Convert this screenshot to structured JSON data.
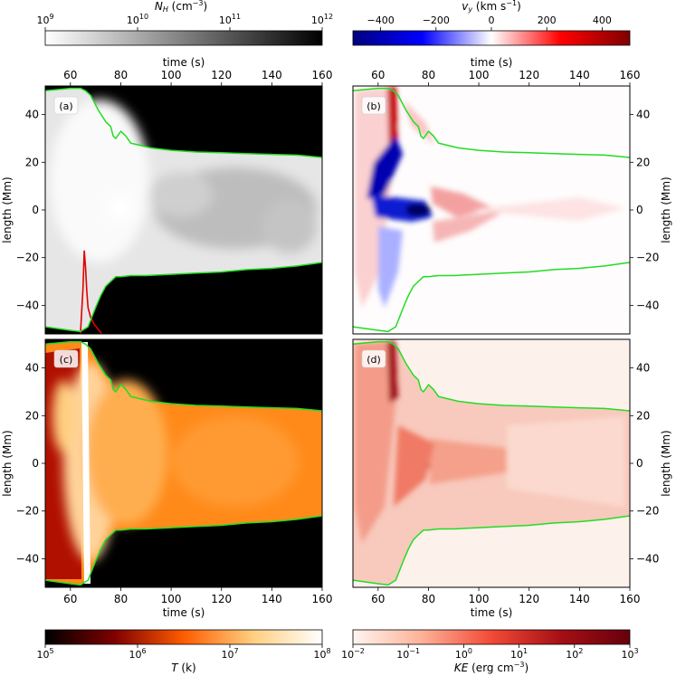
{
  "panels": [
    {
      "id": "a",
      "label": "(a)",
      "x_tick_side": "top",
      "y_tick_side": "left",
      "xlabel": "time (s)",
      "ylabel": "length (Mm)",
      "show_red_profile": true
    },
    {
      "id": "b",
      "label": "(b)",
      "x_tick_side": "top",
      "y_tick_side": "right",
      "xlabel": "time (s)",
      "ylabel": "length (Mm)",
      "show_red_profile": false
    },
    {
      "id": "c",
      "label": "(c)",
      "x_tick_side": "bottom",
      "y_tick_side": "left",
      "xlabel": "time (s)",
      "ylabel": "length (Mm)",
      "show_red_profile": false
    },
    {
      "id": "d",
      "label": "(d)",
      "x_tick_side": "bottom",
      "y_tick_side": "right",
      "xlabel": "time (s)",
      "ylabel": "length (Mm)",
      "show_red_profile": false
    }
  ],
  "colorbars": [
    {
      "id": "nh",
      "label": "N_H (cm^-3)",
      "scale": "log",
      "ticks": [
        "10^9",
        "10^10",
        "10^11",
        "10^12"
      ],
      "colors": [
        "#ffffff",
        "#000000"
      ]
    },
    {
      "id": "vy",
      "label": "v_y (km s^-1)",
      "scale": "linear",
      "ticks": [
        "−400",
        "−200",
        "0",
        "200",
        "400"
      ],
      "tick_values": [
        -400,
        -200,
        0,
        200,
        400
      ],
      "range": [
        -500,
        500
      ],
      "colors": [
        "#00007f",
        "#0000ff",
        "#ffffff",
        "#ff0000",
        "#7f0000"
      ]
    },
    {
      "id": "t",
      "label": "T (k)",
      "scale": "log",
      "ticks": [
        "10^5",
        "10^6",
        "10^7",
        "10^8"
      ],
      "colors": [
        "#000000",
        "#7f0000",
        "#ff5c00",
        "#ffcf80",
        "#ffffff"
      ]
    },
    {
      "id": "ke",
      "label": "KE (erg cm^-3)",
      "scale": "log",
      "ticks": [
        "10^-2",
        "10^-1",
        "10^0",
        "10^1",
        "10^2",
        "10^3"
      ],
      "colors": [
        "#fff5f0",
        "#fcb197",
        "#f34a36",
        "#a50f15",
        "#67000d"
      ]
    }
  ],
  "chart_data": {
    "type": "heatmap",
    "xlabel": "time (s)",
    "ylabel": "length (Mm)",
    "xlim": [
      50,
      160
    ],
    "ylim": [
      -52,
      52
    ],
    "xticks": [
      60,
      80,
      100,
      120,
      140,
      160
    ],
    "yticks": [
      -40,
      -20,
      0,
      20,
      40
    ],
    "boundary_upper": {
      "x": [
        50,
        60,
        64,
        66,
        68,
        71,
        74,
        76,
        77,
        78,
        80,
        82,
        84,
        86,
        88,
        92,
        100,
        110,
        120,
        130,
        140,
        150,
        160
      ],
      "y": [
        50,
        51,
        51,
        50,
        48,
        42,
        37,
        35,
        31,
        30,
        33,
        31,
        28,
        27.5,
        27,
        26,
        25,
        24.3,
        24,
        23.6,
        23.3,
        23,
        22
      ]
    },
    "boundary_lower": {
      "x": [
        50,
        60,
        64,
        67,
        70,
        72,
        74,
        76,
        78,
        80,
        84,
        90,
        100,
        110,
        120,
        130,
        140,
        150,
        160
      ],
      "y": [
        -49,
        -50.5,
        -51,
        -49,
        -41,
        -36,
        -32,
        -30,
        -28,
        -28,
        -27.5,
        -27.5,
        -27,
        -26.5,
        -26,
        -25,
        -24.5,
        -23.5,
        -22
      ]
    },
    "red_profile": {
      "x": [
        64,
        65,
        65.5,
        66,
        66.5,
        67,
        68,
        69.5,
        71,
        72.5
      ],
      "y": [
        -52,
        -33,
        -17,
        -24,
        -34,
        -41,
        -45,
        -48,
        -50,
        -52
      ]
    }
  }
}
